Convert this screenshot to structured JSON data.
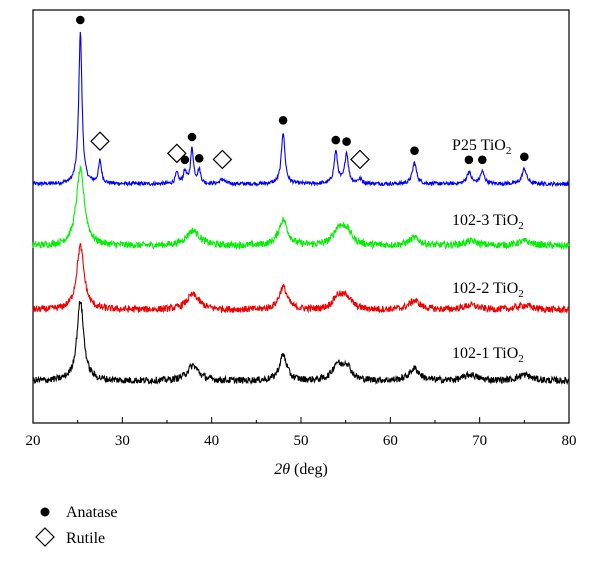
{
  "chart_data": {
    "type": "line",
    "xlabel_symbol": "2θ",
    "xlabel_unit": " (deg)",
    "ylabel": "",
    "xlim": [
      20,
      80
    ],
    "xticks": [
      20,
      30,
      40,
      50,
      60,
      70,
      80
    ],
    "y_axis_ticks": false,
    "series": [
      {
        "name": "P25 TiO",
        "name_sub": "2",
        "color": "#0000ff",
        "offset": 3,
        "peaks": [
          {
            "x": 25.3,
            "h": 1.0,
            "w": 0.22
          },
          {
            "x": 27.5,
            "h": 0.15,
            "w": 0.2
          },
          {
            "x": 36.1,
            "h": 0.07,
            "w": 0.2
          },
          {
            "x": 37.0,
            "h": 0.08,
            "w": 0.2
          },
          {
            "x": 37.8,
            "h": 0.23,
            "w": 0.2
          },
          {
            "x": 38.6,
            "h": 0.09,
            "w": 0.2
          },
          {
            "x": 41.2,
            "h": 0.03,
            "w": 0.3
          },
          {
            "x": 48.0,
            "h": 0.34,
            "w": 0.24
          },
          {
            "x": 53.9,
            "h": 0.21,
            "w": 0.24
          },
          {
            "x": 55.1,
            "h": 0.2,
            "w": 0.24
          },
          {
            "x": 56.6,
            "h": 0.03,
            "w": 0.3
          },
          {
            "x": 62.7,
            "h": 0.14,
            "w": 0.28
          },
          {
            "x": 68.8,
            "h": 0.08,
            "w": 0.28
          },
          {
            "x": 70.3,
            "h": 0.08,
            "w": 0.28
          },
          {
            "x": 75.0,
            "h": 0.1,
            "w": 0.3
          }
        ]
      },
      {
        "name": "102-3 TiO",
        "name_sub": "2",
        "color": "#00ee00",
        "offset": 2,
        "peaks": [
          {
            "x": 25.3,
            "h": 0.5,
            "w": 0.55
          },
          {
            "x": 37.9,
            "h": 0.1,
            "w": 0.9
          },
          {
            "x": 48.0,
            "h": 0.17,
            "w": 0.6
          },
          {
            "x": 54.2,
            "h": 0.1,
            "w": 0.7
          },
          {
            "x": 55.1,
            "h": 0.09,
            "w": 0.7
          },
          {
            "x": 62.7,
            "h": 0.05,
            "w": 0.8
          },
          {
            "x": 69.0,
            "h": 0.03,
            "w": 1.0
          },
          {
            "x": 75.0,
            "h": 0.03,
            "w": 1.0
          }
        ]
      },
      {
        "name": "102-2 TiO",
        "name_sub": "2",
        "color": "#ee0000",
        "offset": 1,
        "peaks": [
          {
            "x": 25.3,
            "h": 0.42,
            "w": 0.5
          },
          {
            "x": 37.9,
            "h": 0.1,
            "w": 0.85
          },
          {
            "x": 48.0,
            "h": 0.15,
            "w": 0.55
          },
          {
            "x": 54.1,
            "h": 0.08,
            "w": 0.65
          },
          {
            "x": 55.1,
            "h": 0.08,
            "w": 0.65
          },
          {
            "x": 62.7,
            "h": 0.06,
            "w": 0.75
          },
          {
            "x": 69.0,
            "h": 0.03,
            "w": 1.0
          },
          {
            "x": 75.0,
            "h": 0.03,
            "w": 1.0
          }
        ]
      },
      {
        "name": "102-1 TiO",
        "name_sub": "2",
        "color": "#000000",
        "offset": 0,
        "peaks": [
          {
            "x": 25.3,
            "h": 0.53,
            "w": 0.45
          },
          {
            "x": 37.9,
            "h": 0.1,
            "w": 0.8
          },
          {
            "x": 48.0,
            "h": 0.17,
            "w": 0.5
          },
          {
            "x": 54.0,
            "h": 0.1,
            "w": 0.6
          },
          {
            "x": 55.1,
            "h": 0.1,
            "w": 0.6
          },
          {
            "x": 62.7,
            "h": 0.08,
            "w": 0.7
          },
          {
            "x": 69.0,
            "h": 0.04,
            "w": 0.9
          },
          {
            "x": 75.0,
            "h": 0.04,
            "w": 0.9
          }
        ]
      }
    ],
    "markers": {
      "anatase": [
        25.3,
        37.0,
        37.8,
        38.6,
        48.0,
        53.9,
        55.1,
        62.7,
        68.8,
        70.3,
        75.0
      ],
      "rutile": [
        27.5,
        36.1,
        41.2,
        56.6
      ]
    },
    "legend": {
      "position": "bottom-left",
      "items": [
        {
          "symbol": "filled-circle",
          "label": "Anatase"
        },
        {
          "symbol": "open-diamond",
          "label": "Rutile"
        }
      ]
    }
  }
}
